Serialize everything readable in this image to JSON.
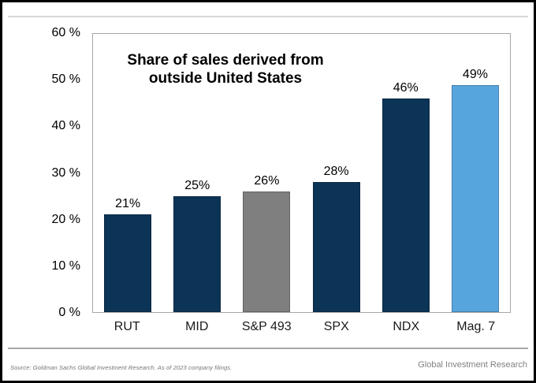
{
  "chart_data": {
    "type": "bar",
    "title": "Share of sales derived from outside United States",
    "title_lines": [
      "Share of sales derived from",
      "outside United States"
    ],
    "categories": [
      "RUT",
      "MID",
      "S&P 493",
      "SPX",
      "NDX",
      "Mag. 7"
    ],
    "values": [
      21,
      25,
      26,
      28,
      46,
      49
    ],
    "value_labels": [
      "21%",
      "25%",
      "26%",
      "28%",
      "46%",
      "49%"
    ],
    "bar_colors": [
      "#0c3456",
      "#0c3456",
      "#7f7f7f",
      "#0c3456",
      "#0c3456",
      "#57a5dd"
    ],
    "ylim": [
      0,
      60
    ],
    "ytick_values": [
      0,
      10,
      20,
      30,
      40,
      50,
      60
    ],
    "ytick_labels": [
      "0 %",
      "10 %",
      "20 %",
      "30 %",
      "40 %",
      "50 %",
      "60 %"
    ],
    "grid": false,
    "legend_position": "none"
  },
  "colors": {
    "navy": "#0c3456",
    "highlight_blue": "#57a5dd",
    "muted_gray": "#7f7f7f",
    "rule_light": "#d9d9d9",
    "rule_dark": "#a6a6a6"
  },
  "footer": {
    "source": "Source: Goldman Sachs Global Investment Research. As of 2023 company filings.",
    "branding": "Global Investment Research"
  }
}
